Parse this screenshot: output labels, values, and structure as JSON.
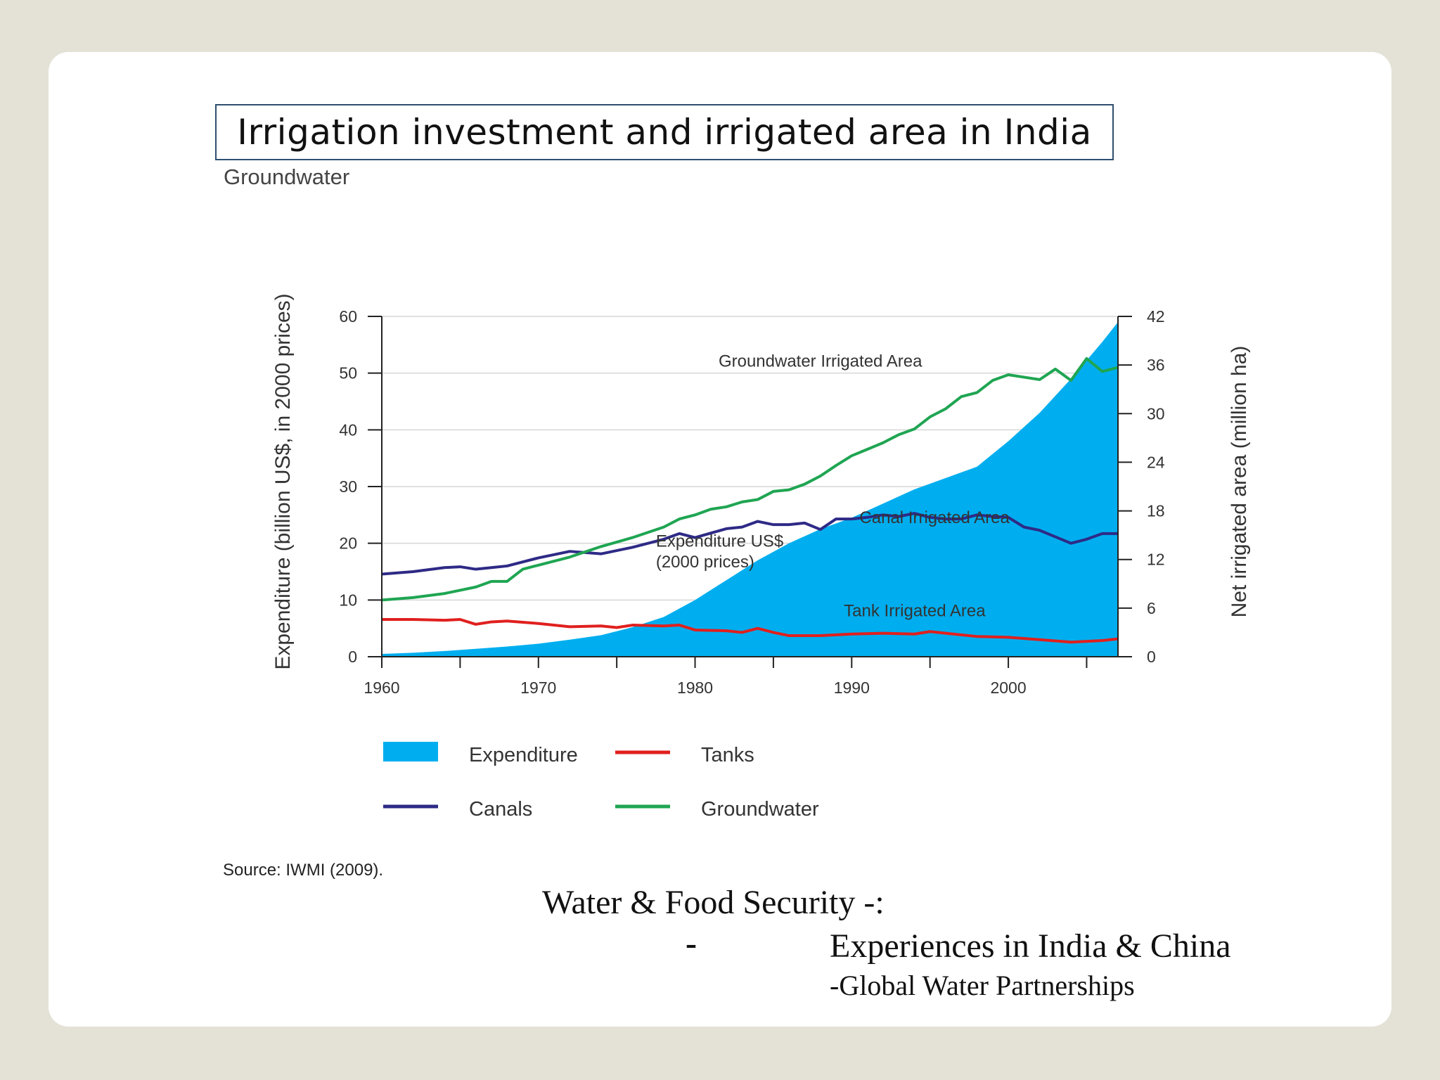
{
  "slide": {
    "title": "Irrigation investment and irrigated area in India",
    "subtitle": "Groundwater",
    "source": "Source: IWMI (2009).",
    "credit_line1": "Water & Food Security -:",
    "credit_dash": "-",
    "credit_line2": "Experiences in India & China",
    "credit_line3": "-Global Water Partnerships"
  },
  "colors": {
    "expenditure": "#00aeef",
    "canals": "#2e2a86",
    "tanks": "#e0201e",
    "groundwater": "#1fa552"
  },
  "chart_data": {
    "type": "area",
    "xlabel": "",
    "ylabel": "Expenditure (billion US$, in 2000 prices)",
    "y2label": "Net irrigated area (million ha)",
    "xlim": [
      1960,
      2007
    ],
    "ylim": [
      0,
      60
    ],
    "y2lim": [
      0,
      42
    ],
    "x_ticks": [
      1960,
      1970,
      1980,
      1990,
      2000
    ],
    "y_ticks": [
      0,
      10,
      20,
      30,
      40,
      50,
      60
    ],
    "y2_ticks": [
      0,
      6,
      12,
      18,
      24,
      30,
      36,
      42
    ],
    "grid": true,
    "legend_position": "bottom",
    "annotations": [
      {
        "text": "Groundwater Irrigated Area",
        "x": 1981.5,
        "y": 35.8
      },
      {
        "text": "Canal Irrigated Area",
        "x": 1990.5,
        "y": 16.5
      },
      {
        "text": "Expenditure US$",
        "x": 1977.5,
        "y": 13.6
      },
      {
        "text": "(2000 prices)",
        "x": 1977.5,
        "y": 11.0
      },
      {
        "text": "Tank Irrigated Area",
        "x": 1989.5,
        "y": 5.0
      }
    ],
    "series": [
      {
        "name": "Expenditure",
        "kind": "area",
        "axis": "left",
        "color": "#00aeef",
        "x": [
          1960,
          1962,
          1964,
          1966,
          1968,
          1970,
          1972,
          1974,
          1976,
          1978,
          1980,
          1982,
          1984,
          1986,
          1988,
          1990,
          1992,
          1994,
          1996,
          1998,
          2000,
          2002,
          2004,
          2006,
          2007
        ],
        "values": [
          0.5,
          0.7,
          1.0,
          1.4,
          1.8,
          2.3,
          3.0,
          3.8,
          5.2,
          7.0,
          10.0,
          13.5,
          17.0,
          20.0,
          22.5,
          24.5,
          27.0,
          29.5,
          31.5,
          33.5,
          38.0,
          43.0,
          49.0,
          55.5,
          59.0
        ]
      },
      {
        "name": "Canals",
        "kind": "line",
        "axis": "right",
        "color": "#2e2a86",
        "x": [
          1960,
          1962,
          1964,
          1965,
          1966,
          1967,
          1968,
          1970,
          1972,
          1974,
          1976,
          1978,
          1979,
          1980,
          1982,
          1983,
          1984,
          1985,
          1986,
          1987,
          1988,
          1989,
          1990,
          1991,
          1992,
          1993,
          1994,
          1995,
          1996,
          1997,
          1998,
          1999,
          2000,
          2001,
          2002,
          2003,
          2004,
          2005,
          2006,
          2007
        ],
        "values": [
          10.2,
          10.5,
          11.0,
          11.1,
          10.8,
          11.0,
          11.2,
          12.2,
          13.0,
          12.7,
          13.5,
          14.5,
          15.2,
          14.7,
          15.8,
          16.0,
          16.7,
          16.3,
          16.3,
          16.5,
          15.7,
          17.0,
          17.0,
          17.2,
          17.5,
          17.3,
          17.7,
          17.2,
          17.0,
          17.0,
          17.5,
          17.3,
          17.2,
          16.0,
          15.6,
          14.8,
          14.0,
          14.5,
          15.2,
          15.2
        ]
      },
      {
        "name": "Tanks",
        "kind": "line",
        "axis": "right",
        "color": "#e0201e",
        "x": [
          1960,
          1962,
          1964,
          1965,
          1966,
          1967,
          1968,
          1970,
          1972,
          1974,
          1975,
          1976,
          1978,
          1979,
          1980,
          1982,
          1983,
          1984,
          1985,
          1986,
          1988,
          1990,
          1992,
          1994,
          1995,
          1996,
          1998,
          2000,
          2002,
          2004,
          2006,
          2007
        ],
        "values": [
          4.6,
          4.6,
          4.5,
          4.6,
          4.0,
          4.3,
          4.4,
          4.1,
          3.7,
          3.8,
          3.6,
          3.9,
          3.8,
          3.9,
          3.3,
          3.2,
          3.0,
          3.5,
          3.0,
          2.6,
          2.6,
          2.8,
          2.9,
          2.8,
          3.1,
          2.9,
          2.5,
          2.4,
          2.1,
          1.8,
          2.0,
          2.2
        ]
      },
      {
        "name": "Groundwater",
        "kind": "line",
        "axis": "right",
        "color": "#1fa552",
        "x": [
          1960,
          1962,
          1964,
          1966,
          1967,
          1968,
          1969,
          1970,
          1972,
          1974,
          1976,
          1978,
          1979,
          1980,
          1981,
          1982,
          1983,
          1984,
          1985,
          1986,
          1987,
          1988,
          1989,
          1990,
          1991,
          1992,
          1993,
          1994,
          1995,
          1996,
          1997,
          1998,
          1999,
          2000,
          2001,
          2002,
          2003,
          2004,
          2005,
          2006,
          2007
        ],
        "values": [
          7.0,
          7.3,
          7.8,
          8.6,
          9.3,
          9.3,
          10.8,
          11.3,
          12.3,
          13.6,
          14.7,
          16.0,
          17.0,
          17.5,
          18.2,
          18.5,
          19.1,
          19.4,
          20.4,
          20.6,
          21.3,
          22.3,
          23.6,
          24.8,
          25.6,
          26.4,
          27.4,
          28.1,
          29.6,
          30.6,
          32.1,
          32.6,
          34.1,
          34.8,
          34.5,
          34.2,
          35.5,
          34.1,
          36.8,
          35.2,
          35.7
        ]
      }
    ],
    "legend": [
      {
        "label": "Expenditure",
        "series": "Expenditure"
      },
      {
        "label": "Tanks",
        "series": "Tanks"
      },
      {
        "label": "Canals",
        "series": "Canals"
      },
      {
        "label": "Groundwater",
        "series": "Groundwater"
      }
    ]
  }
}
